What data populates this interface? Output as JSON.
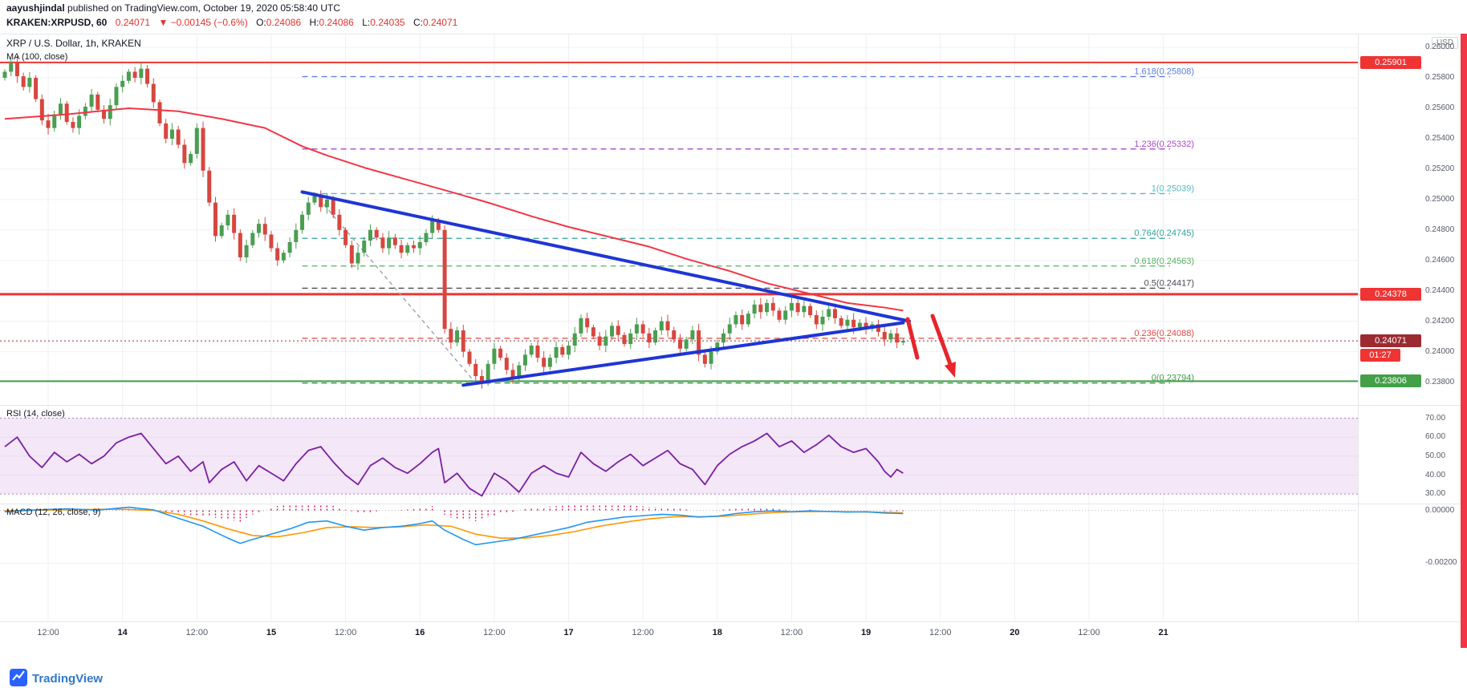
{
  "header": {
    "publisher": "aayushjindal",
    "publish_rest": " published on TradingView.com, October 19, 2020 05:58:40 UTC",
    "symbol": "KRAKEN:XRPUSD, 60",
    "last_price": "0.24071",
    "change": "▼ −0.00145 (−0.6%)",
    "o_label": "O:",
    "o": "0.24086",
    "h_label": "H:",
    "h": "0.24086",
    "l_label": "L:",
    "l": "0.24035",
    "c_label": "C:",
    "c": "0.24071"
  },
  "legend": {
    "title": "XRP / U.S. Dollar, 1h, KRAKEN",
    "ma": "MA (100, close)"
  },
  "rsi_label": "RSI (14, close)",
  "macd_label": "MACD (12, 26, close, 9)",
  "price_scale_unit": "USD",
  "footer": {
    "brand": "TradingView"
  },
  "chart_data": {
    "type": "candlestick",
    "title": "XRP / U.S. Dollar, 1h, KRAKEN",
    "interval": "1h",
    "exchange": "KRAKEN",
    "time_span": "2020-10-13 05:00 UTC to 2020-10-19 05:00 UTC, hourly candles",
    "open_first": 0.258,
    "closes": [
      0.2584,
      0.259,
      0.2581,
      0.2574,
      0.258,
      0.2566,
      0.2552,
      0.2547,
      0.2556,
      0.2563,
      0.2551,
      0.2547,
      0.2555,
      0.2561,
      0.2569,
      0.2559,
      0.2553,
      0.2562,
      0.2574,
      0.2578,
      0.2584,
      0.258,
      0.2586,
      0.2576,
      0.2564,
      0.255,
      0.254,
      0.2546,
      0.2536,
      0.2524,
      0.253,
      0.2547,
      0.2519,
      0.2498,
      0.2476,
      0.2483,
      0.249,
      0.2478,
      0.2462,
      0.247,
      0.2478,
      0.2484,
      0.2477,
      0.2468,
      0.246,
      0.2465,
      0.2472,
      0.248,
      0.249,
      0.2498,
      0.2503,
      0.2495,
      0.25,
      0.249,
      0.248,
      0.247,
      0.2458,
      0.2465,
      0.2473,
      0.248,
      0.2475,
      0.2468,
      0.2475,
      0.247,
      0.2465,
      0.247,
      0.2468,
      0.2472,
      0.2478,
      0.2486,
      0.248,
      0.2415,
      0.2406,
      0.2414,
      0.24,
      0.2392,
      0.2384,
      0.238,
      0.2392,
      0.2402,
      0.2396,
      0.2388,
      0.2383,
      0.2391,
      0.2398,
      0.2404,
      0.2396,
      0.239,
      0.2396,
      0.2403,
      0.2398,
      0.2404,
      0.2412,
      0.2422,
      0.2416,
      0.241,
      0.2404,
      0.241,
      0.2417,
      0.2411,
      0.2405,
      0.2412,
      0.2418,
      0.2412,
      0.2406,
      0.2414,
      0.242,
      0.2414,
      0.2408,
      0.2402,
      0.2408,
      0.2414,
      0.2398,
      0.2392,
      0.24,
      0.2406,
      0.2412,
      0.2418,
      0.2424,
      0.2418,
      0.2425,
      0.2431,
      0.2426,
      0.2432,
      0.2427,
      0.2421,
      0.2427,
      0.2432,
      0.2426,
      0.243,
      0.2424,
      0.2418,
      0.2423,
      0.2428,
      0.2422,
      0.2417,
      0.2421,
      0.2416,
      0.2419,
      0.2415,
      0.2418,
      0.2413,
      0.2408,
      0.2412,
      0.2406,
      0.24071
    ],
    "ma100": [
      [
        0,
        0.2553
      ],
      [
        10,
        0.2556
      ],
      [
        20,
        0.256
      ],
      [
        28,
        0.2558
      ],
      [
        35,
        0.2553
      ],
      [
        42,
        0.2547
      ],
      [
        48,
        0.2535
      ],
      [
        52,
        0.2529
      ],
      [
        58,
        0.2521
      ],
      [
        65,
        0.2513
      ],
      [
        72,
        0.2505
      ],
      [
        78,
        0.2498
      ],
      [
        85,
        0.2489
      ],
      [
        91,
        0.2482
      ],
      [
        98,
        0.2475
      ],
      [
        104,
        0.2469
      ],
      [
        110,
        0.2461
      ],
      [
        117,
        0.2453
      ],
      [
        123,
        0.2445
      ],
      [
        130,
        0.2438
      ],
      [
        136,
        0.2432
      ],
      [
        142,
        0.2429
      ],
      [
        145,
        0.2427
      ]
    ],
    "price_axis": {
      "min": 0.2365,
      "max": 0.2609,
      "ticks": [
        {
          "v": 0.26,
          "label": "0.26000"
        },
        {
          "v": 0.258,
          "label": "0.25800"
        },
        {
          "v": 0.256,
          "label": "0.25600"
        },
        {
          "v": 0.254,
          "label": "0.25400"
        },
        {
          "v": 0.252,
          "label": "0.25200"
        },
        {
          "v": 0.25,
          "label": "0.25000"
        },
        {
          "v": 0.248,
          "label": "0.24800"
        },
        {
          "v": 0.246,
          "label": "0.24600"
        },
        {
          "v": 0.244,
          "label": "0.24400"
        },
        {
          "v": 0.242,
          "label": "0.24200"
        },
        {
          "v": 0.24,
          "label": "0.24000"
        },
        {
          "v": 0.238,
          "label": "0.23800"
        }
      ]
    },
    "time_labels": [
      {
        "i": 7,
        "t": "12:00"
      },
      {
        "i": 19,
        "t": "14",
        "d": 1
      },
      {
        "i": 31,
        "t": "12:00"
      },
      {
        "i": 43,
        "t": "15",
        "d": 1
      },
      {
        "i": 55,
        "t": "12:00"
      },
      {
        "i": 67,
        "t": "16",
        "d": 1
      },
      {
        "i": 79,
        "t": "12:00"
      },
      {
        "i": 91,
        "t": "17",
        "d": 1
      },
      {
        "i": 103,
        "t": "12:00"
      },
      {
        "i": 115,
        "t": "18",
        "d": 1
      },
      {
        "i": 127,
        "t": "12:00"
      },
      {
        "i": 139,
        "t": "19",
        "d": 1
      },
      {
        "i": 151,
        "t": "12:00"
      },
      {
        "i": 163,
        "t": "20",
        "d": 1
      },
      {
        "i": 175,
        "t": "12:00"
      },
      {
        "i": 187,
        "t": "21",
        "d": 1
      }
    ],
    "fib_levels": [
      {
        "label": "1.618(0.25808)",
        "value": 0.25808,
        "color": "#5b7cdd"
      },
      {
        "label": "1.236(0.25332)",
        "value": 0.25332,
        "color": "#a948c9"
      },
      {
        "label": "1(0.25039)",
        "value": 0.25039,
        "color": "#55b8c4"
      },
      {
        "label": "0.764(0.24745)",
        "value": 0.24745,
        "color": "#2fa39a"
      },
      {
        "label": "0.618(0.24563)",
        "value": 0.24563,
        "color": "#53b15c"
      },
      {
        "label": "0.5(0.24417)",
        "value": 0.24417,
        "color": "#4a4a55"
      },
      {
        "label": "0.236(0.24088)",
        "value": 0.24088,
        "color": "#e34741"
      },
      {
        "label": "0(0.23794)",
        "value": 0.23794,
        "color": "#3f9c49"
      }
    ],
    "h_lines": [
      {
        "value": 0.25901,
        "badge": "0.25901",
        "color": "#ef3434",
        "width": 2
      },
      {
        "value": 0.24378,
        "badge": "0.24378",
        "color": "#ef3434",
        "width": 3
      },
      {
        "value": 0.23806,
        "badge": "0.23806",
        "color": "#43a047",
        "width": 2
      }
    ],
    "last": {
      "value": 0.24071,
      "badge": "0.24071",
      "color": "#9c2b31",
      "countdown": "01:27",
      "countdown_color": "#ef3434"
    },
    "trendlines": [
      {
        "i1": 48,
        "p1": 0.2505,
        "i2": 146,
        "p2": 0.242
      },
      {
        "i1": 74,
        "p1": 0.2378,
        "i2": 145,
        "p2": 0.2419
      }
    ],
    "fib_diagonal": {
      "i1": 50,
      "p1": 0.25039,
      "i2": 76,
      "p2": 0.23794
    },
    "annotations": {
      "color": "#e8242c",
      "stroke": [
        [
          1131,
          356
        ],
        [
          1143,
          404
        ]
      ],
      "shaft": [
        [
          1162,
          352
        ],
        [
          1184,
          412
        ]
      ],
      "head": [
        [
          1190,
          429
        ],
        [
          1177,
          414
        ],
        [
          1191,
          409
        ]
      ]
    },
    "colors": {
      "up": "#4a9e51",
      "down": "#d6473f",
      "ma": "#f23645",
      "trend": "#1f35d4"
    },
    "rsi": {
      "range": [
        25,
        77
      ],
      "band": [
        30,
        70
      ],
      "band_fill": "#f3e7f8",
      "band_line": "#b07cc6",
      "color": "#7b1fa2",
      "ticks": [
        {
          "v": 70,
          "label": "70.00"
        },
        {
          "v": 60,
          "label": "60.00"
        },
        {
          "v": 50,
          "label": "50.00"
        },
        {
          "v": 40,
          "label": "40.00"
        },
        {
          "v": 30,
          "label": "30.00"
        }
      ],
      "points": [
        [
          0,
          55
        ],
        [
          2,
          60
        ],
        [
          4,
          50
        ],
        [
          6,
          44
        ],
        [
          8,
          52
        ],
        [
          10,
          47
        ],
        [
          12,
          51
        ],
        [
          14,
          46
        ],
        [
          16,
          50
        ],
        [
          18,
          57
        ],
        [
          20,
          60
        ],
        [
          22,
          62
        ],
        [
          24,
          54
        ],
        [
          26,
          46
        ],
        [
          28,
          50
        ],
        [
          30,
          42
        ],
        [
          32,
          47
        ],
        [
          33,
          36
        ],
        [
          35,
          43
        ],
        [
          37,
          47
        ],
        [
          39,
          37
        ],
        [
          41,
          45
        ],
        [
          43,
          41
        ],
        [
          45,
          37
        ],
        [
          47,
          46
        ],
        [
          49,
          53
        ],
        [
          51,
          55
        ],
        [
          53,
          47
        ],
        [
          55,
          40
        ],
        [
          57,
          35
        ],
        [
          59,
          45
        ],
        [
          61,
          49
        ],
        [
          63,
          44
        ],
        [
          65,
          41
        ],
        [
          67,
          46
        ],
        [
          69,
          52
        ],
        [
          70,
          54
        ],
        [
          71,
          36
        ],
        [
          73,
          41
        ],
        [
          75,
          33
        ],
        [
          77,
          29
        ],
        [
          79,
          41
        ],
        [
          81,
          37
        ],
        [
          83,
          31
        ],
        [
          85,
          41
        ],
        [
          87,
          45
        ],
        [
          89,
          41
        ],
        [
          91,
          39
        ],
        [
          93,
          52
        ],
        [
          95,
          46
        ],
        [
          97,
          42
        ],
        [
          99,
          47
        ],
        [
          101,
          51
        ],
        [
          103,
          45
        ],
        [
          105,
          49
        ],
        [
          107,
          53
        ],
        [
          109,
          46
        ],
        [
          111,
          43
        ],
        [
          113,
          35
        ],
        [
          115,
          45
        ],
        [
          117,
          51
        ],
        [
          119,
          55
        ],
        [
          121,
          58
        ],
        [
          123,
          62
        ],
        [
          125,
          55
        ],
        [
          127,
          58
        ],
        [
          129,
          52
        ],
        [
          131,
          56
        ],
        [
          133,
          61
        ],
        [
          135,
          55
        ],
        [
          137,
          52
        ],
        [
          139,
          54
        ],
        [
          141,
          47
        ],
        [
          142,
          42
        ],
        [
          143,
          39
        ],
        [
          144,
          43
        ],
        [
          145,
          41
        ]
      ]
    },
    "macd": {
      "range": [
        -0.00421,
        0.00026
      ],
      "ticks": [
        {
          "v": 0,
          "label": "0.00000"
        },
        {
          "v": -0.002,
          "label": "-0.00200"
        }
      ],
      "colors": {
        "macd": "#2196f3",
        "signal": "#ff9800",
        "hist": "#d81b60"
      },
      "macd": [
        [
          0,
          -5e-05
        ],
        [
          5,
          2e-05
        ],
        [
          10,
          6e-05
        ],
        [
          15,
          1e-05
        ],
        [
          20,
          0.00012
        ],
        [
          24,
          2e-05
        ],
        [
          28,
          -0.0003
        ],
        [
          32,
          -0.0006
        ],
        [
          36,
          -0.00105
        ],
        [
          38,
          -0.00125
        ],
        [
          40,
          -0.0011
        ],
        [
          43,
          -0.0009
        ],
        [
          46,
          -0.0007
        ],
        [
          49,
          -0.00045
        ],
        [
          52,
          -0.0004
        ],
        [
          55,
          -0.0006
        ],
        [
          58,
          -0.00075
        ],
        [
          61,
          -0.00065
        ],
        [
          64,
          -0.0006
        ],
        [
          67,
          -0.0005
        ],
        [
          69,
          -0.0004
        ],
        [
          71,
          -0.00075
        ],
        [
          74,
          -0.0011
        ],
        [
          76,
          -0.0013
        ],
        [
          79,
          -0.0012
        ],
        [
          82,
          -0.0011
        ],
        [
          85,
          -0.00095
        ],
        [
          88,
          -0.0008
        ],
        [
          91,
          -0.00065
        ],
        [
          94,
          -0.00045
        ],
        [
          97,
          -0.00035
        ],
        [
          100,
          -0.00025
        ],
        [
          103,
          -0.0002
        ],
        [
          106,
          -0.00015
        ],
        [
          109,
          -0.00018
        ],
        [
          112,
          -0.00025
        ],
        [
          115,
          -0.00022
        ],
        [
          118,
          -0.00012
        ],
        [
          121,
          -5e-05
        ],
        [
          124,
          -2e-05
        ],
        [
          127,
          -5e-05
        ],
        [
          130,
          -2e-05
        ],
        [
          133,
          -4e-05
        ],
        [
          136,
          -6e-05
        ],
        [
          139,
          -5e-05
        ],
        [
          142,
          -0.0001
        ],
        [
          145,
          -0.00012
        ]
      ],
      "signal": [
        [
          0,
          -2e-05
        ],
        [
          6,
          1e-05
        ],
        [
          12,
          3e-05
        ],
        [
          18,
          5e-05
        ],
        [
          24,
          0.0
        ],
        [
          28,
          -0.00015
        ],
        [
          32,
          -0.0004
        ],
        [
          36,
          -0.0007
        ],
        [
          40,
          -0.00095
        ],
        [
          44,
          -0.001
        ],
        [
          48,
          -0.00085
        ],
        [
          52,
          -0.00065
        ],
        [
          56,
          -0.00062
        ],
        [
          60,
          -0.00065
        ],
        [
          64,
          -0.00062
        ],
        [
          68,
          -0.00055
        ],
        [
          72,
          -0.0006
        ],
        [
          76,
          -0.0009
        ],
        [
          80,
          -0.00105
        ],
        [
          84,
          -0.00105
        ],
        [
          88,
          -0.00095
        ],
        [
          92,
          -0.0008
        ],
        [
          96,
          -0.0006
        ],
        [
          100,
          -0.00045
        ],
        [
          104,
          -0.00032
        ],
        [
          108,
          -0.00024
        ],
        [
          112,
          -0.00024
        ],
        [
          116,
          -0.00022
        ],
        [
          120,
          -0.00015
        ],
        [
          124,
          -8e-05
        ],
        [
          128,
          -5e-05
        ],
        [
          132,
          -4e-05
        ],
        [
          136,
          -5e-05
        ],
        [
          140,
          -6e-05
        ],
        [
          145,
          -9e-05
        ]
      ]
    }
  }
}
